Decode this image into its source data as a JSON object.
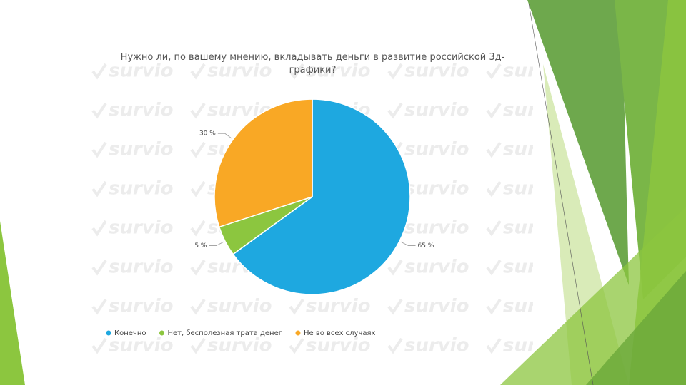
{
  "watermark": "survio",
  "chart_data": {
    "type": "pie",
    "title": "Нужно ли, по вашему мнению, вкладывать деньги в развитие российской 3д-графики?",
    "categories": [
      "Конечно",
      "Нет, бесполезная трата денег",
      "Не во всех случаях"
    ],
    "values": [
      65,
      5,
      30
    ],
    "value_labels": [
      "65 %",
      "5 %",
      "30 %"
    ],
    "colors": [
      "#1ea8e0",
      "#8cc63f",
      "#f9a825"
    ],
    "legend": "bottom"
  }
}
